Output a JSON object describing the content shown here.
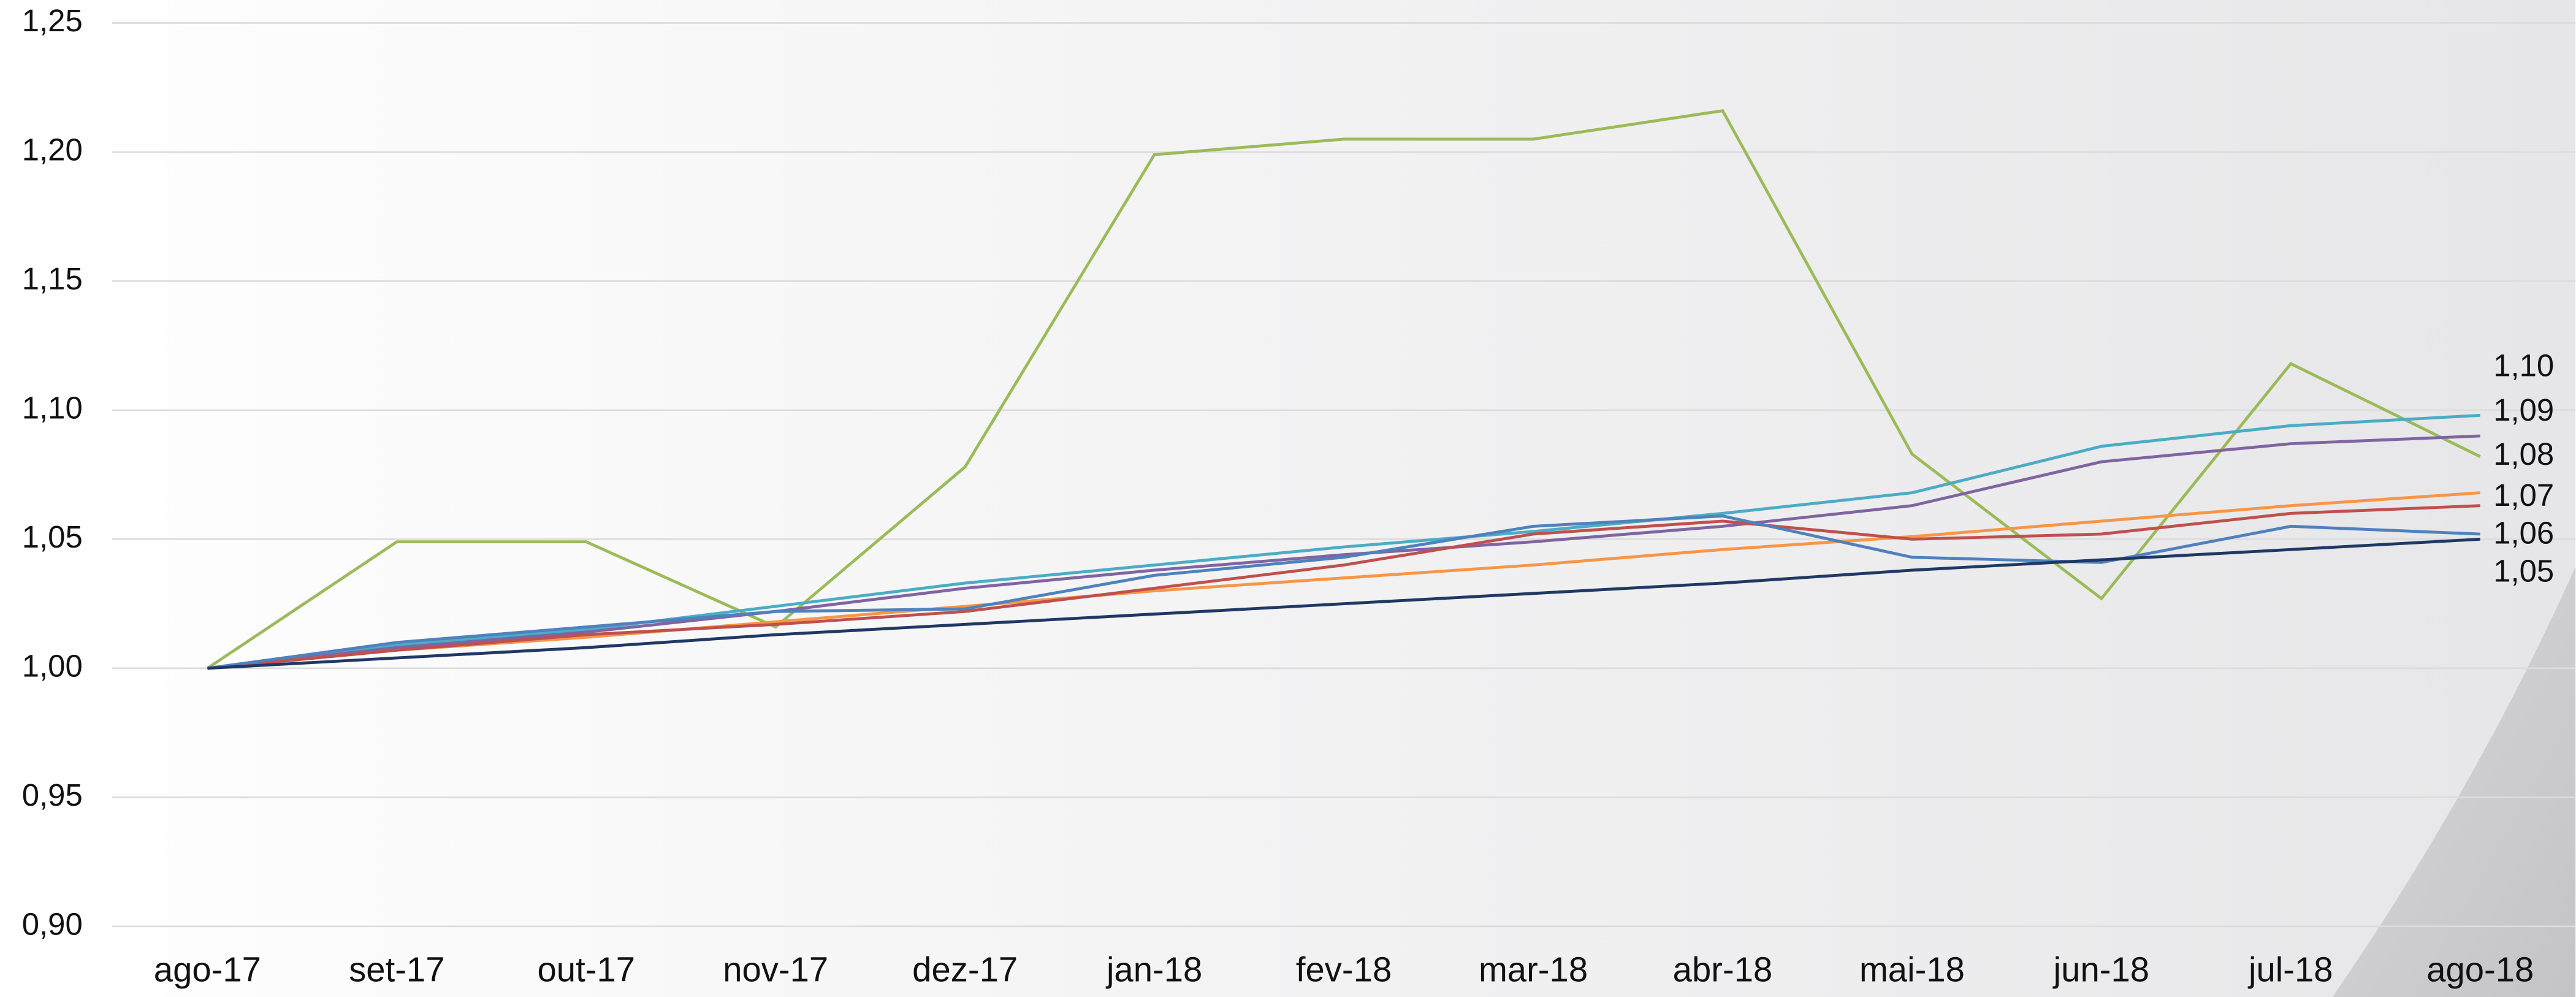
{
  "chart_data": {
    "type": "line",
    "categories": [
      "ago-17",
      "set-17",
      "out-17",
      "nov-17",
      "dez-17",
      "jan-18",
      "fev-18",
      "mar-18",
      "abr-18",
      "mai-18",
      "jun-18",
      "jul-18",
      "ago-18"
    ],
    "series": [
      {
        "color": "#9bbb59",
        "values": [
          1.0,
          1.049,
          1.049,
          1.016,
          1.078,
          1.199,
          1.205,
          1.205,
          1.216,
          1.083,
          1.027,
          1.118,
          1.082
        ]
      },
      {
        "color": "#4bacc6",
        "values": [
          1.0,
          1.009,
          1.015,
          1.024,
          1.033,
          1.04,
          1.047,
          1.053,
          1.06,
          1.068,
          1.086,
          1.094,
          1.098
        ]
      },
      {
        "color": "#8064a2",
        "values": [
          1.0,
          1.008,
          1.014,
          1.022,
          1.031,
          1.038,
          1.044,
          1.049,
          1.055,
          1.063,
          1.08,
          1.087,
          1.09
        ]
      },
      {
        "color": "#f79646",
        "values": [
          1.0,
          1.007,
          1.012,
          1.018,
          1.024,
          1.03,
          1.035,
          1.04,
          1.046,
          1.051,
          1.057,
          1.063,
          1.068
        ]
      },
      {
        "color": "#c0504d",
        "values": [
          1.0,
          1.007,
          1.013,
          1.017,
          1.022,
          1.031,
          1.04,
          1.052,
          1.057,
          1.05,
          1.052,
          1.06,
          1.063
        ]
      },
      {
        "color": "#4f81bd",
        "values": [
          1.0,
          1.01,
          1.016,
          1.022,
          1.023,
          1.036,
          1.043,
          1.055,
          1.059,
          1.043,
          1.041,
          1.055,
          1.052
        ]
      },
      {
        "color": "#1f3864",
        "values": [
          1.0,
          1.004,
          1.008,
          1.013,
          1.017,
          1.021,
          1.025,
          1.029,
          1.033,
          1.038,
          1.042,
          1.046,
          1.05
        ]
      }
    ],
    "annotations": [
      "1,10",
      "1,09",
      "1,08",
      "1,07",
      "1,06",
      "1,05"
    ],
    "ylim": [
      0.9,
      1.25
    ],
    "yticks": [
      {
        "value": 0.9,
        "label": "0,90"
      },
      {
        "value": 0.95,
        "label": "0,95"
      },
      {
        "value": 1.0,
        "label": "1,00"
      },
      {
        "value": 1.05,
        "label": "1,05"
      },
      {
        "value": 1.1,
        "label": "1,10"
      },
      {
        "value": 1.15,
        "label": "1,15"
      },
      {
        "value": 1.2,
        "label": "1,20"
      },
      {
        "value": 1.25,
        "label": "1,25"
      }
    ],
    "grid": true
  }
}
